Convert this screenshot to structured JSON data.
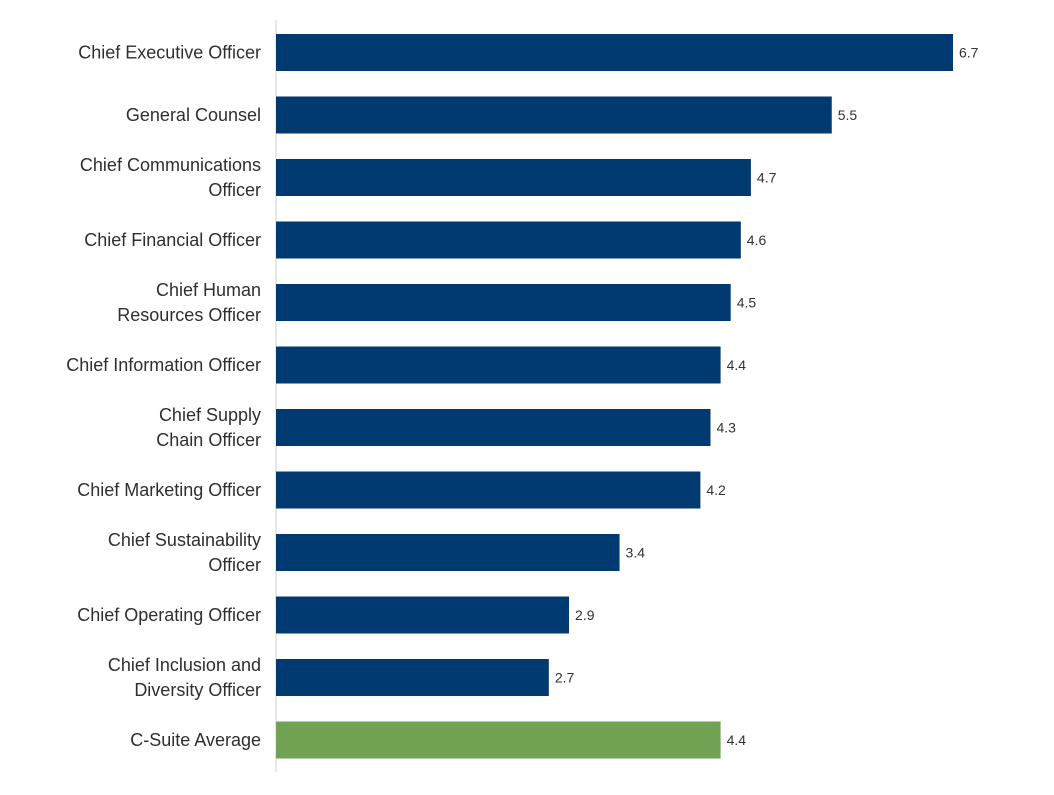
{
  "chart_data": {
    "type": "bar",
    "orientation": "horizontal",
    "categories": [
      [
        "Chief Executive Officer"
      ],
      [
        "General Counsel"
      ],
      [
        "Chief Communications",
        "Officer"
      ],
      [
        "Chief Financial Officer"
      ],
      [
        "Chief Human",
        "Resources Officer"
      ],
      [
        "Chief Information Officer"
      ],
      [
        "Chief Supply",
        "Chain Officer"
      ],
      [
        "Chief Marketing Officer"
      ],
      [
        "Chief Sustainability",
        "Officer"
      ],
      [
        "Chief Operating Officer"
      ],
      [
        "Chief Inclusion and",
        "Diversity Officer"
      ],
      [
        "C-Suite Average"
      ]
    ],
    "values": [
      6.7,
      5.5,
      4.7,
      4.6,
      4.5,
      4.4,
      4.3,
      4.2,
      3.4,
      2.9,
      2.7,
      4.4
    ],
    "value_labels": [
      "6.7",
      "5.5",
      "4.7",
      "4.6",
      "4.5",
      "4.4",
      "4.3",
      "4.2",
      "3.4",
      "2.9",
      "2.7",
      "4.4"
    ],
    "highlight_index": 11,
    "xlim": [
      0,
      6.7
    ],
    "grid": false,
    "legend": "none",
    "title": "",
    "xlabel": "",
    "ylabel": "",
    "colors": {
      "bar": "#003a70",
      "highlight": "#71a153",
      "axis": "#d0d0d0"
    }
  }
}
